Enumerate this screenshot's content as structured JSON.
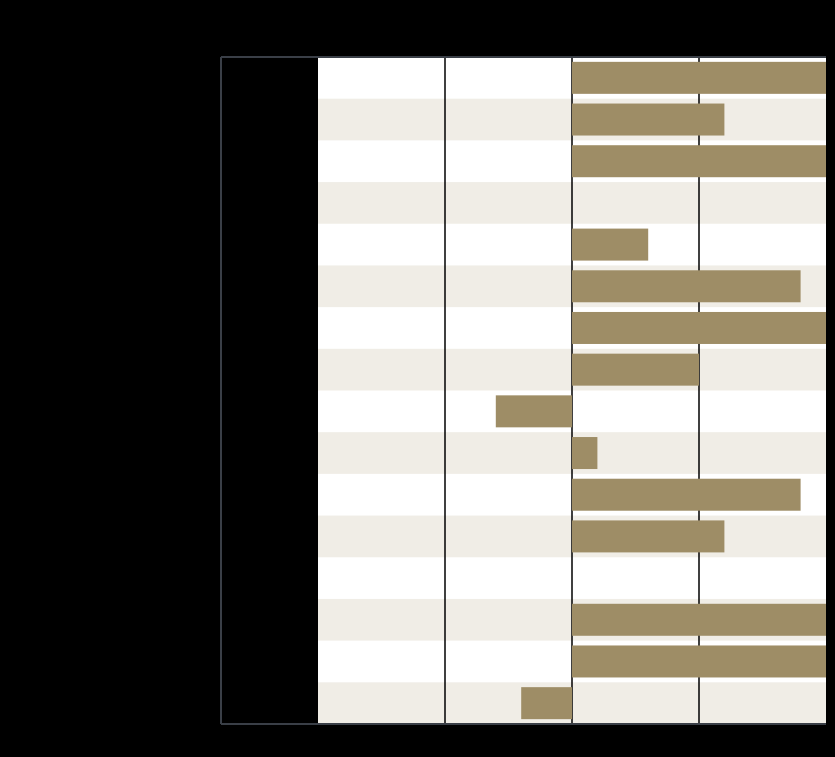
{
  "chart_data": {
    "type": "bar",
    "orientation": "horizontal",
    "title": "",
    "xlabel": "",
    "ylabel": "",
    "categories": [
      "",
      "",
      "",
      "",
      "",
      "",
      "",
      "",
      "",
      "",
      "",
      "",
      "",
      "",
      "",
      ""
    ],
    "series": [
      {
        "values": [
          2.0,
          1.2,
          2.0,
          0,
          0.6,
          1.8,
          2.0,
          1.0,
          -0.6,
          0.2,
          1.8,
          1.2,
          0,
          2.0,
          2.0,
          -0.4
        ]
      }
    ],
    "xlim": [
      -2,
      2
    ],
    "grid": true,
    "legend": "none",
    "bar_color": "#9e8d66",
    "band_color": "#f0ede6",
    "background": "#ffffff",
    "page_background": "#000000",
    "frame_color": "#3a3f47"
  }
}
